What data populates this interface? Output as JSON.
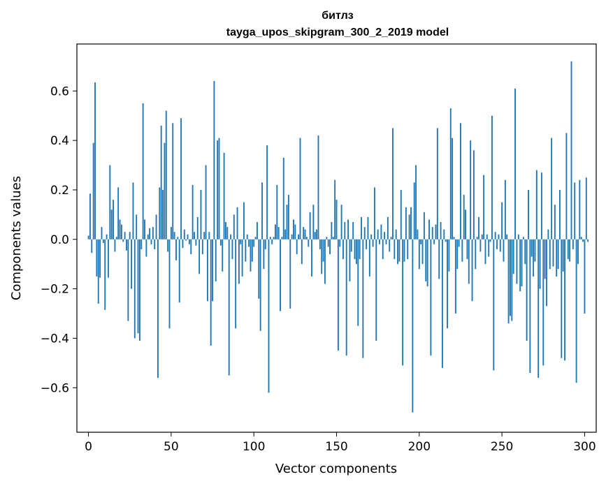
{
  "chart_data": {
    "type": "bar",
    "title": "битлз",
    "subtitle": "tayga_upos_skipgram_300_2_2019 model",
    "xlabel": "Vector components",
    "ylabel": "Components values",
    "xlim": [
      -7,
      307
    ],
    "ylim": [
      -0.78,
      0.79
    ],
    "xticks": [
      0,
      50,
      100,
      150,
      200,
      250,
      300
    ],
    "yticks": [
      -0.6,
      -0.4,
      -0.2,
      0.0,
      0.2,
      0.4,
      0.6
    ],
    "ytick_labels": [
      "−0.6",
      "−0.4",
      "−0.2",
      "0.0",
      "0.2",
      "0.4",
      "0.6"
    ],
    "xtick_labels": [
      "0",
      "50",
      "100",
      "150",
      "200",
      "250",
      "300"
    ],
    "bar_color": "#1f77b4",
    "values": [
      0.015,
      0.185,
      -0.055,
      0.39,
      0.635,
      -0.15,
      -0.26,
      -0.155,
      0.05,
      -0.015,
      -0.285,
      0.02,
      -0.155,
      0.3,
      0.12,
      0.16,
      -0.05,
      0.01,
      0.21,
      0.08,
      0.06,
      -0.01,
      0.03,
      -0.045,
      -0.33,
      0.03,
      -0.2,
      0.23,
      -0.4,
      0.1,
      -0.38,
      -0.41,
      -0.04,
      0.55,
      0.08,
      -0.07,
      0.02,
      0.045,
      -0.02,
      0.05,
      -0.04,
      0.1,
      -0.56,
      0.21,
      0.46,
      0.2,
      0.39,
      0.52,
      -0.05,
      -0.36,
      0.05,
      0.47,
      0.03,
      -0.085,
      0.01,
      -0.255,
      0.49,
      -0.035,
      0.04,
      -0.005,
      0.02,
      -0.02,
      -0.06,
      0.22,
      0.03,
      -0.025,
      0.09,
      -0.14,
      0.2,
      -0.06,
      0.03,
      0.3,
      -0.25,
      0.03,
      -0.43,
      -0.25,
      0.64,
      -0.17,
      0.4,
      0.41,
      -0.025,
      -0.13,
      0.35,
      0.07,
      0.05,
      -0.55,
      0.02,
      -0.08,
      0.1,
      -0.36,
      0.13,
      -0.18,
      -0.02,
      -0.15,
      0.15,
      -0.09,
      0.02,
      -0.03,
      -0.13,
      -0.09,
      -0.03,
      0.01,
      0.07,
      -0.24,
      -0.37,
      0.23,
      -0.12,
      -0.04,
      0.38,
      -0.62,
      0.01,
      -0.02,
      0.01,
      0.06,
      0.22,
      0.05,
      -0.29,
      0.01,
      0.33,
      0.04,
      0.14,
      0.18,
      -0.28,
      0.02,
      0.08,
      0.06,
      -0.06,
      0.02,
      0.41,
      -0.1,
      0.05,
      0.04,
      0.01,
      -0.03,
      0.11,
      -0.15,
      0.14,
      0.03,
      0.04,
      0.42,
      -0.04,
      -0.14,
      -0.09,
      -0.18,
      0.01,
      -0.03,
      -0.06,
      0.07,
      0.01,
      0.24,
      0.16,
      -0.45,
      -0.03,
      0.14,
      -0.08,
      0.07,
      -0.47,
      0.08,
      -0.17,
      -0.05,
      0.07,
      -0.08,
      -0.1,
      -0.35,
      -0.08,
      0.09,
      -0.48,
      0.05,
      -0.04,
      0.09,
      -0.15,
      0.02,
      -0.03,
      0.21,
      -0.41,
      0.04,
      -0.02,
      0.06,
      -0.08,
      0.03,
      -0.02,
      0.09,
      -0.05,
      0.01,
      0.45,
      -0.08,
      0.04,
      -0.1,
      -0.09,
      0.2,
      -0.51,
      -0.09,
      0.13,
      -0.08,
      0.1,
      0.13,
      -0.7,
      0.23,
      0.3,
      0.04,
      -0.12,
      -0.02,
      -0.1,
      0.11,
      -0.17,
      -0.19,
      0.08,
      -0.47,
      0.05,
      -0.02,
      0.06,
      0.45,
      -0.16,
      0.07,
      -0.52,
      0.04,
      -0.01,
      -0.36,
      -0.13,
      0.53,
      0.41,
      0.01,
      -0.3,
      -0.12,
      -0.03,
      0.47,
      -0.09,
      0.18,
      0.12,
      -0.08,
      -0.18,
      0.4,
      -0.25,
      0.36,
      -0.12,
      0.01,
      0.09,
      -0.05,
      0.02,
      0.26,
      -0.1,
      0.02,
      -0.07,
      -0.01,
      0.5,
      -0.53,
      0.03,
      -0.04,
      0.02,
      -0.05,
      0.15,
      -0.09,
      0.24,
      0.02,
      -0.34,
      -0.31,
      -0.33,
      -0.14,
      0.61,
      -0.18,
      0.02,
      -0.21,
      -0.19,
      0.01,
      -0.1,
      -0.41,
      0.2,
      -0.54,
      -0.07,
      -0.15,
      -0.09,
      0.28,
      -0.56,
      -0.2,
      0.27,
      -0.51,
      -0.16,
      -0.27,
      0.04,
      -0.12,
      0.41,
      -0.11,
      0.14,
      -0.15,
      -0.12,
      0.2,
      -0.48,
      -0.13,
      -0.49,
      0.43,
      -0.08,
      -0.09,
      0.72,
      -0.04,
      0.23,
      -0.58,
      -0.1,
      0.24,
      0.01,
      -0.01,
      -0.3,
      0.25,
      -0.01
    ]
  }
}
